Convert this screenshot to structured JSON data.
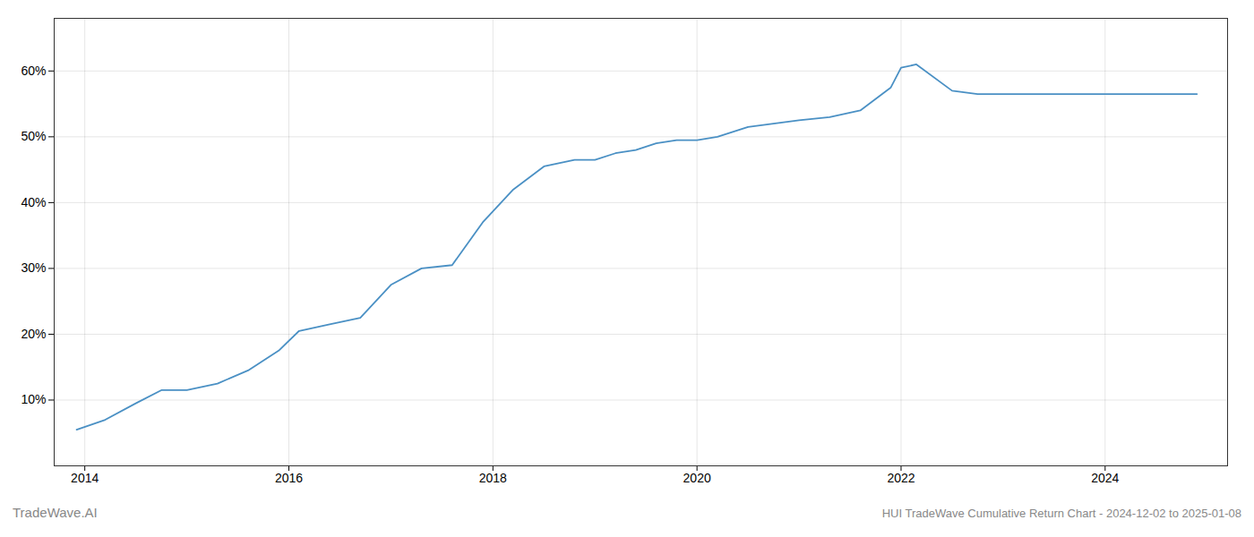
{
  "chart_data": {
    "type": "line",
    "title": "HUI TradeWave Cumulative Return Chart - 2024-12-02 to 2025-01-08",
    "annotations": [
      {
        "text": "TradeWave.AI"
      }
    ],
    "color": "#4a90c4",
    "x": [
      2013.92,
      2014.2,
      2014.5,
      2014.75,
      2015.0,
      2015.3,
      2015.6,
      2015.9,
      2016.1,
      2016.4,
      2016.7,
      2017.0,
      2017.3,
      2017.6,
      2017.9,
      2018.2,
      2018.5,
      2018.8,
      2019.0,
      2019.2,
      2019.4,
      2019.6,
      2019.8,
      2020.0,
      2020.2,
      2020.5,
      2020.75,
      2021.0,
      2021.3,
      2021.6,
      2021.9,
      2022.0,
      2022.15,
      2022.5,
      2022.75,
      2023.0,
      2023.5,
      2024.0,
      2024.5,
      2024.9
    ],
    "values": [
      5.5,
      7.0,
      9.5,
      11.5,
      11.5,
      12.5,
      14.5,
      17.5,
      20.5,
      21.5,
      22.5,
      27.5,
      30.0,
      30.5,
      37.0,
      42.0,
      45.5,
      46.5,
      46.5,
      47.5,
      48.0,
      49.0,
      49.5,
      49.5,
      50.0,
      51.5,
      52.0,
      52.5,
      53.0,
      54.0,
      57.5,
      60.5,
      61.0,
      57.0,
      56.5,
      56.5,
      56.5,
      56.5,
      56.5,
      56.5
    ],
    "xlim": [
      2013.7,
      2025.2
    ],
    "ylim": [
      0,
      68
    ],
    "xticks": [
      2014,
      2016,
      2018,
      2020,
      2022,
      2024
    ],
    "yticks": [
      {
        "value": 10,
        "label": "10%"
      },
      {
        "value": 20,
        "label": "20%"
      },
      {
        "value": 30,
        "label": "30%"
      },
      {
        "value": 40,
        "label": "40%"
      },
      {
        "value": 50,
        "label": "50%"
      },
      {
        "value": 60,
        "label": "60%"
      }
    ],
    "grid": true
  }
}
